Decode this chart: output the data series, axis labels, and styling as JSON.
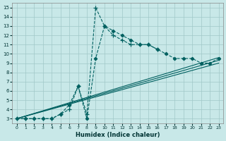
{
  "xlabel": "Humidex (Indice chaleur)",
  "bg_color": "#c8e8e8",
  "grid_color": "#a0c8c8",
  "line_color": "#006060",
  "xlim": [
    -0.5,
    23.5
  ],
  "ylim": [
    2.5,
    15.5
  ],
  "xticks": [
    0,
    1,
    2,
    3,
    4,
    5,
    6,
    7,
    8,
    9,
    10,
    11,
    12,
    13,
    14,
    15,
    16,
    17,
    18,
    19,
    20,
    21,
    22,
    23
  ],
  "yticks": [
    3,
    4,
    5,
    6,
    7,
    8,
    9,
    10,
    11,
    12,
    13,
    14,
    15
  ],
  "line1_x": [
    0,
    23
  ],
  "line1_y": [
    3.0,
    9.0
  ],
  "line2_x": [
    0,
    23
  ],
  "line2_y": [
    3.0,
    9.3
  ],
  "line3_x": [
    0,
    23
  ],
  "line3_y": [
    3.0,
    9.6
  ],
  "dashed1_x": [
    0,
    1,
    2,
    3,
    4,
    5,
    6,
    7,
    8,
    9,
    10,
    11,
    12,
    13,
    14,
    15,
    16,
    17,
    18,
    19,
    20,
    21,
    22,
    23
  ],
  "dashed1_y": [
    3,
    3,
    3,
    3,
    3,
    3.5,
    4.5,
    6.5,
    3,
    9.5,
    13,
    12.5,
    12,
    11.5,
    11,
    11,
    10.5,
    10,
    9.5,
    9.5,
    9.5,
    9,
    9,
    9.5
  ],
  "dashed2_x": [
    0,
    1,
    2,
    3,
    4,
    5,
    6,
    7,
    8,
    9,
    10,
    11,
    12,
    13,
    14,
    15,
    16
  ],
  "dashed2_y": [
    3,
    3,
    3,
    3,
    3,
    3.5,
    4,
    6.5,
    3.5,
    15,
    13,
    12,
    11.5,
    11,
    11,
    11,
    10.5
  ]
}
